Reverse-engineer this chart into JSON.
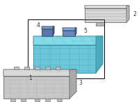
{
  "bg_color": "#ffffff",
  "border_color": "#333333",
  "part1_color": "#6bc8d8",
  "part1_top": "#85dae8",
  "part1_side": "#4aabbf",
  "part1_edge": "#3a8fa0",
  "part2_color": "#d8d8d8",
  "part2_top": "#e8e8e8",
  "part2_side": "#b8b8b8",
  "part2_edge": "#666666",
  "part3_color": "#c8c8c8",
  "part3_top": "#d8d8d8",
  "part3_side": "#aaaaaa",
  "part3_edge": "#666666",
  "part4_color": "#5577aa",
  "part4_edge": "#334466",
  "part5_color": "#6688bb",
  "part5_edge": "#334466",
  "sel_box_color": "#000000",
  "label1": "1",
  "label2": "2",
  "label3": "3",
  "label4": "4",
  "label5": "5",
  "font_size": 5.5
}
